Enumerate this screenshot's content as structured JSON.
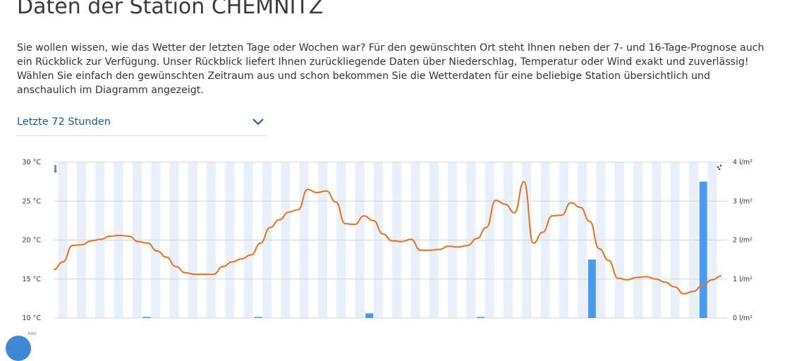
{
  "page": {
    "title": "Daten der Station CHEMNITZ",
    "intro": "Sie wollen wissen, wie das Wetter der letzten Tage oder Wochen war? Für den gewünschten Ort steht Ihnen neben der 7- und 16-Tage-Prognose auch ein Rückblick zur Verfügung. Unser Rückblick liefert Ihnen zurückliegende Daten über Niederschlag, Temperatur oder Wind exakt und zuverlässig! Wählen Sie einfach den gewünschten Zeitraum aus und schon bekommen Sie die Wetterdaten für eine beliebige Station übersichtlich und anschaulich im Diagramm angezeigt."
  },
  "range_select": {
    "selected": "Letzte 72 Stunden",
    "icon": "chevron-down-icon"
  },
  "bottom": {
    "label": "km/"
  },
  "colors": {
    "temperature": "#e8711a",
    "precipitation": "#4a9af2",
    "band": "#e8f1fb",
    "select_text": "#1a5a8c"
  },
  "chart_data": {
    "type": "line",
    "y_left": {
      "ticks": [
        "30 °C",
        "25 °C",
        "20 °C",
        "15 °C",
        "10 °C"
      ],
      "range": [
        10,
        30
      ]
    },
    "y_right": {
      "ticks": [
        "4 l/m²",
        "3 l/m²",
        "2 l/m²",
        "1 l/m²",
        "0 l/m²"
      ],
      "range": [
        0,
        4
      ]
    },
    "grid": true,
    "hours": 72,
    "series": [
      {
        "kind": "line",
        "values": [
          16.2,
          17.2,
          19.3,
          19.4,
          19.9,
          20.1,
          20.5,
          20.6,
          20.5,
          19.8,
          19.6,
          18.6,
          17.8,
          16.6,
          15.8,
          15.6,
          15.6,
          15.6,
          16.6,
          17.2,
          17.6,
          18.1,
          19.6,
          21.6,
          22.6,
          23.6,
          23.9,
          26.5,
          26.1,
          26.3,
          24.9,
          22.1,
          22.0,
          23.1,
          22.5,
          20.8,
          19.9,
          19.8,
          20.1,
          18.7,
          18.7,
          18.8,
          19.2,
          19.1,
          19.3,
          20.2,
          21.6,
          25.1,
          24.6,
          23.5,
          27.5,
          19.6,
          21.0,
          23.1,
          23.2,
          24.8,
          24.2,
          22.4,
          18.9,
          17.4,
          15.1,
          14.9,
          15.2,
          15.3,
          15.0,
          14.6,
          14.0,
          13.1,
          13.4,
          14.2,
          14.9,
          15.4
        ]
      },
      {
        "kind": "bar",
        "values": [
          {
            "hour": 10,
            "value": 0.02
          },
          {
            "hour": 22,
            "value": 0.02
          },
          {
            "hour": 34,
            "value": 0.12
          },
          {
            "hour": 46,
            "value": 0.02
          },
          {
            "hour": 58,
            "value": 1.5
          },
          {
            "hour": 70,
            "value": 3.5
          }
        ]
      }
    ]
  }
}
